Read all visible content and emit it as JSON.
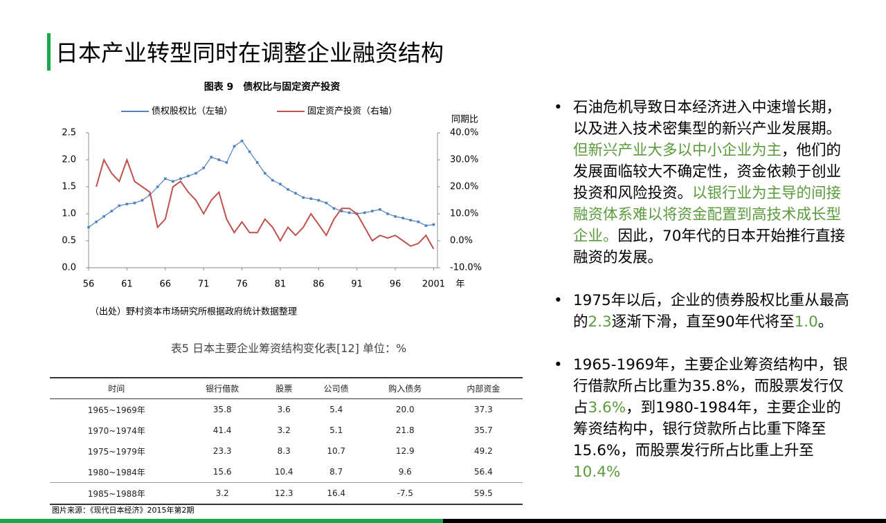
{
  "header": {
    "title": "日本产业转型同时在调整企业融资结构",
    "accent": "#1aa64a"
  },
  "chart_data": {
    "type": "line",
    "title": "图表 9　债权比与固定资产投资",
    "x": [
      1956,
      1957,
      1958,
      1959,
      1960,
      1961,
      1962,
      1963,
      1964,
      1965,
      1966,
      1967,
      1968,
      1969,
      1970,
      1971,
      1972,
      1973,
      1974,
      1975,
      1976,
      1977,
      1978,
      1979,
      1980,
      1981,
      1982,
      1983,
      1984,
      1985,
      1986,
      1987,
      1988,
      1989,
      1990,
      1991,
      1992,
      1993,
      1994,
      1995,
      1996,
      1997,
      1998,
      1999,
      2000,
      2001
    ],
    "series": [
      {
        "name": "债权股权比（左轴）",
        "color": "#4f81bd",
        "values": [
          0.75,
          0.85,
          0.95,
          1.05,
          1.15,
          1.18,
          1.2,
          1.25,
          1.35,
          1.5,
          1.65,
          1.6,
          1.65,
          1.7,
          1.75,
          1.85,
          2.05,
          2,
          1.95,
          2.25,
          2.35,
          2.15,
          1.95,
          1.75,
          1.62,
          1.55,
          1.45,
          1.38,
          1.3,
          1.28,
          1.25,
          1.2,
          1.1,
          1.05,
          1.02,
          1,
          1.02,
          1.05,
          1.08,
          1,
          0.95,
          0.92,
          0.88,
          0.85,
          0.78,
          0.8
        ]
      },
      {
        "name": "固定资产投资（右轴）",
        "color": "#c0504d",
        "axis": "y2",
        "values": [
          null,
          20,
          30,
          25,
          22,
          30,
          22,
          20,
          18,
          5,
          8,
          20,
          22,
          18,
          15,
          10,
          15,
          18,
          8,
          3,
          7,
          3,
          3,
          8,
          5,
          0,
          5,
          2,
          5,
          10,
          6,
          2,
          8,
          12,
          12,
          10,
          5,
          0,
          2,
          1,
          2,
          0,
          -2,
          -1,
          2,
          -3
        ]
      }
    ],
    "xlim": [
      1956,
      2001.5
    ],
    "xticks": [
      {
        "value": 1956,
        "label": "56"
      },
      {
        "value": 1961,
        "label": "61"
      },
      {
        "value": 1966,
        "label": "66"
      },
      {
        "value": 1971,
        "label": "71"
      },
      {
        "value": 1976,
        "label": "76"
      },
      {
        "value": 1981,
        "label": "81"
      },
      {
        "value": 1986,
        "label": "86"
      },
      {
        "value": 1991,
        "label": "91"
      },
      {
        "value": 1996,
        "label": "96"
      },
      2001
    ],
    "xlabel": "年",
    "ylim": [
      0,
      2.5
    ],
    "yticks": [
      {
        "value": 0,
        "label": "0.0"
      },
      {
        "value": 0.5,
        "label": "0.5"
      },
      {
        "value": 1,
        "label": "1.0"
      },
      {
        "value": 1.5,
        "label": "1.5"
      },
      {
        "value": 2,
        "label": "2.0"
      },
      {
        "value": 2.5,
        "label": "2.5"
      }
    ],
    "y2label": "同期比",
    "y2lim": [
      -10,
      40
    ],
    "y2ticks": [
      {
        "value": -10,
        "label": "-10.0%"
      },
      {
        "value": 0,
        "label": "0.0%"
      },
      {
        "value": 10,
        "label": "10.0%"
      },
      {
        "value": 20,
        "label": "20.0%"
      },
      {
        "value": 30,
        "label": "30.0%"
      },
      {
        "value": 40,
        "label": "40.0%"
      }
    ],
    "source": "（出处）野村资本市场研究所根据政府统计数据整理"
  },
  "table": {
    "title": "表5 日本主要企业筹资结构变化表[12] 单位：%",
    "columns": [
      "时间",
      "银行借款",
      "股票",
      "公司债",
      "购入债务",
      "内部资金"
    ],
    "rows": [
      [
        "1965~1969年",
        "35.8",
        "3.6",
        "5.4",
        "20.0",
        "37.3"
      ],
      [
        "1970~1974年",
        "41.4",
        "3.2",
        "5.1",
        "21.8",
        "35.7"
      ],
      [
        "1975~1979年",
        "23.3",
        "8.3",
        "10.7",
        "12.9",
        "49.2"
      ],
      [
        "1980~1984年",
        "15.6",
        "10.4",
        "8.7",
        "9.6",
        "56.4"
      ],
      [
        "1985~1988年",
        "3.2",
        "12.3",
        "16.4",
        "-7.5",
        "59.5"
      ]
    ]
  },
  "footer": {
    "source": "图片来源：《现代日本经济》2015年第2期"
  },
  "bullets": [
    {
      "parts": [
        {
          "text": "石油危机导致日本经济进入中速增长期，以及进入技术密集型的新兴产业发展期。",
          "color": "#000000"
        },
        {
          "text": "但新兴产业大多以中小企业为主",
          "color": "#5b9b3c"
        },
        {
          "text": "，他们的发展面临较大不确定性，资金依赖于创业投资和风险投资。",
          "color": "#000000"
        },
        {
          "text": "以银行业为主导的间接融资体系难以将资金配置到高技术成长型企业。",
          "color": "#5b9b3c"
        },
        {
          "text": "因此，70年代的日本开始推行直接融资的发展。",
          "color": "#000000"
        }
      ]
    },
    {
      "parts": [
        {
          "text": "1975年以后，企业的债券股权比重从最高的",
          "color": "#000000"
        },
        {
          "text": "2.3",
          "color": "#5b9b3c"
        },
        {
          "text": "逐渐下滑，直至90年代将至",
          "color": "#000000"
        },
        {
          "text": "1.0",
          "color": "#5b9b3c"
        },
        {
          "text": "。",
          "color": "#000000"
        }
      ]
    },
    {
      "parts": [
        {
          "text": "1965-1969年，主要企业筹资结构中，银行借款所占比重为35.8%，而股票发行仅占",
          "color": "#000000"
        },
        {
          "text": "3.6%",
          "color": "#5b9b3c"
        },
        {
          "text": "，到1980-1984年，主要企业的筹资结构中，银行贷款所占比重下降至15.6%，而股票发行所占比重上升至",
          "color": "#000000"
        },
        {
          "text": "10.4%",
          "color": "#5b9b3c"
        }
      ]
    }
  ]
}
